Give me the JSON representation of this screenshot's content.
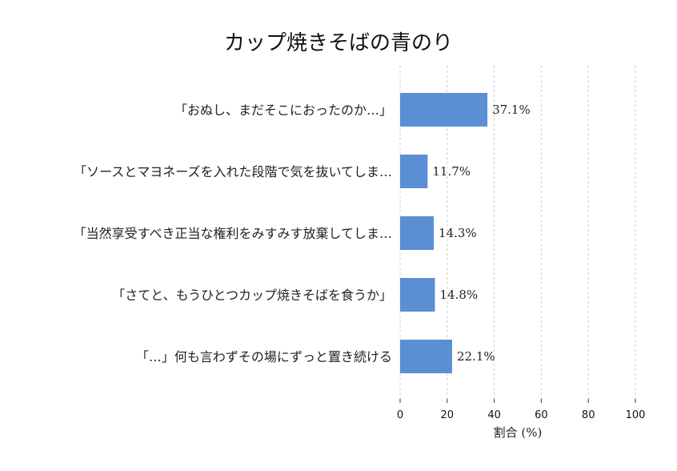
{
  "chart_data": {
    "type": "bar",
    "orientation": "horizontal",
    "title": "カップ焼きそばの青のり",
    "xlabel": "割合 (%)",
    "ylabel": "",
    "xlim": [
      0,
      100
    ],
    "xticks": [
      0,
      20,
      40,
      60,
      80,
      100
    ],
    "grid": true,
    "bar_color": "#5b8fd4",
    "categories": [
      "「おぬし、まだそこにおったのか…」",
      "「ソースとマヨネーズを入れた段階で気を抜いてしま…",
      "「当然享受すべき正当な権利をみすみす放棄してしま…",
      "「さてと、もうひとつカップ焼きそばを食うか」",
      "「…」何も言わずその場にずっと置き続ける"
    ],
    "values": [
      37.1,
      11.7,
      14.3,
      14.8,
      22.1
    ],
    "value_labels": [
      "37.1%",
      "11.7%",
      "14.3%",
      "14.8%",
      "22.1%"
    ]
  }
}
